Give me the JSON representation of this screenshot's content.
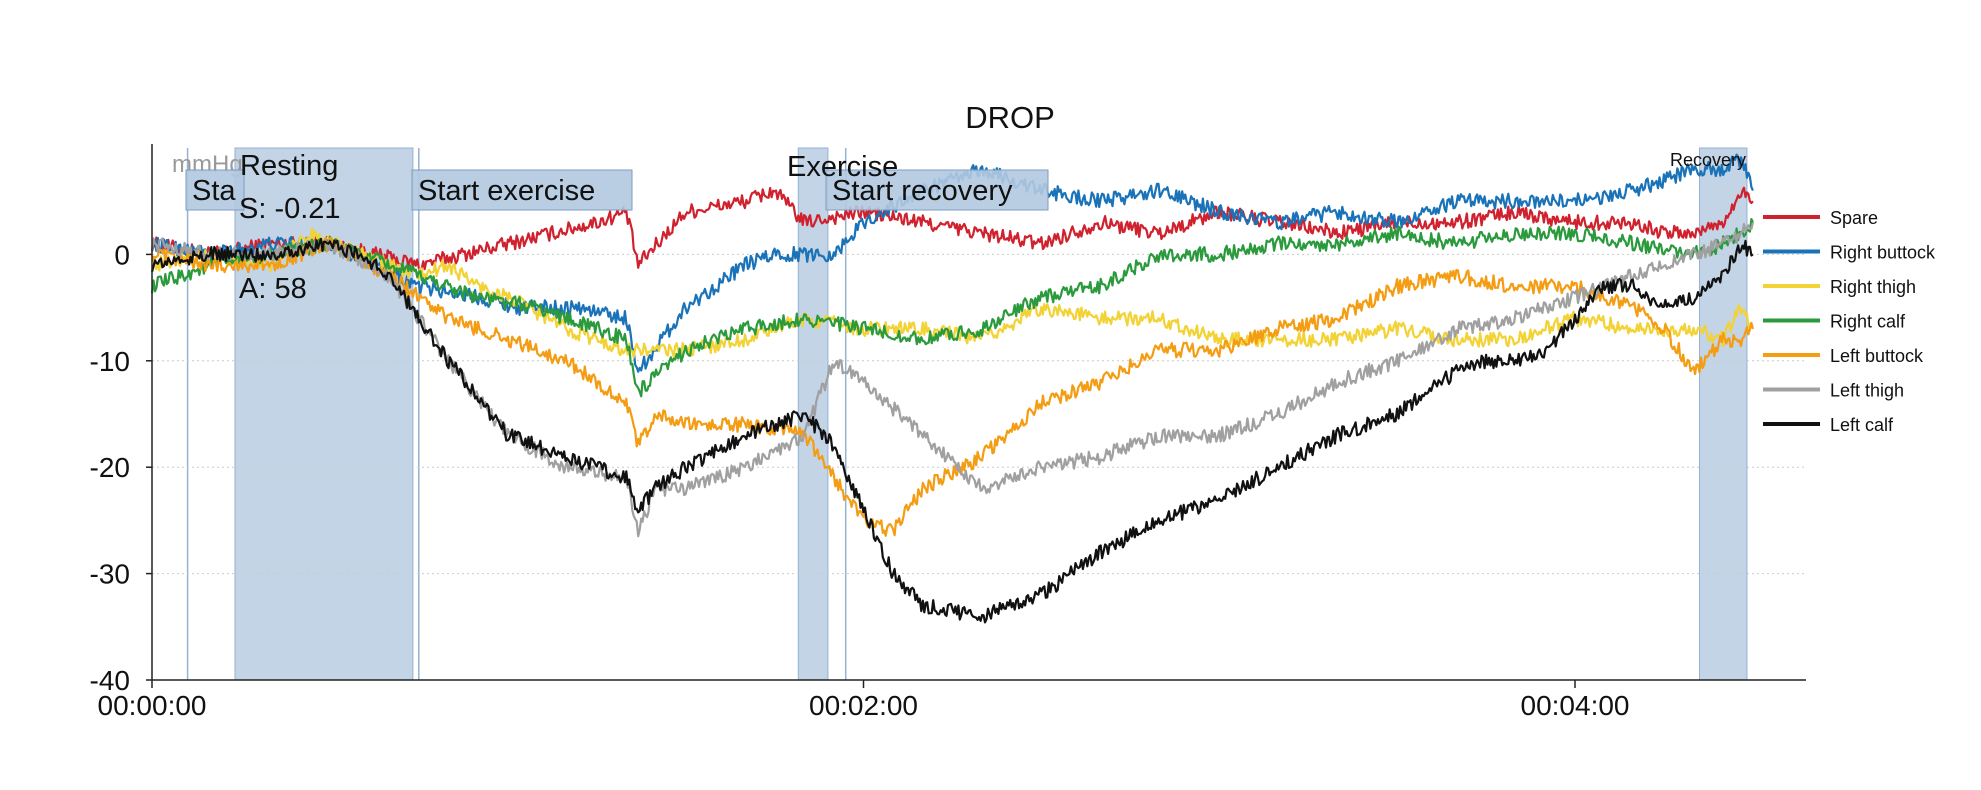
{
  "chart_data": {
    "type": "line",
    "title": "DROP",
    "ylabel": "mmHg",
    "xlabel": "",
    "xlim_seconds": [
      0,
      287
    ],
    "ylim": [
      -40,
      10
    ],
    "y_ticks": [
      0,
      -10,
      -20,
      -30,
      -40
    ],
    "y_tick_labels": [
      "0",
      "-10",
      "-20",
      "-30",
      "-40"
    ],
    "x_ticks_seconds": [
      0,
      120,
      240
    ],
    "x_tick_labels": [
      "00:00:00",
      "00:02:00",
      "00:04:00"
    ],
    "grid": "horizontal dotted",
    "legend_position": "right",
    "phases": [
      {
        "label": "Sta",
        "start": 6,
        "end": 14,
        "shaded": false
      },
      {
        "label": "Resting",
        "start": 14,
        "end": 44,
        "shaded": true
      },
      {
        "label": "Start exercise",
        "start": 45,
        "end": 49,
        "shaded": false
      },
      {
        "label": "Exercise",
        "start": 109,
        "end": 114,
        "shaded": true
      },
      {
        "label": "Start recovery",
        "start": 117,
        "end": 120,
        "shaded": false
      },
      {
        "label": "Recovery",
        "start": 261,
        "end": 269,
        "shaded": true
      }
    ],
    "annotations": [
      "S: -0.21",
      "A: 58"
    ],
    "series": [
      {
        "name": "Spare",
        "color": "#d0222e",
        "x": [
          0,
          10,
          20,
          30,
          45,
          60,
          75,
          80,
          82,
          90,
          100,
          105,
          110,
          120,
          130,
          140,
          150,
          160,
          170,
          180,
          190,
          200,
          210,
          220,
          230,
          240,
          250,
          255,
          260,
          265,
          268,
          270
        ],
        "y": [
          1,
          0,
          1,
          1,
          -1,
          1,
          3,
          4,
          -1,
          4,
          5,
          6,
          3,
          4,
          3,
          2,
          1,
          3,
          2,
          4,
          3,
          2,
          3,
          3,
          4,
          3,
          3,
          2,
          2,
          3,
          6,
          5
        ]
      },
      {
        "name": "Right buttock",
        "color": "#1a73b8",
        "x": [
          0,
          10,
          20,
          30,
          45,
          55,
          62,
          72,
          80,
          82,
          90,
          100,
          105,
          110,
          115,
          120,
          130,
          140,
          150,
          160,
          170,
          180,
          190,
          200,
          210,
          220,
          230,
          240,
          250,
          260,
          265,
          268,
          270
        ],
        "y": [
          1,
          0,
          1,
          1,
          -3,
          -4,
          -5,
          -5,
          -6,
          -11,
          -5,
          -1,
          0,
          0,
          0,
          3,
          6,
          8,
          6,
          5,
          6,
          4,
          3,
          4,
          3,
          5,
          5,
          5,
          6,
          8,
          8,
          9,
          6
        ]
      },
      {
        "name": "Right thigh",
        "color": "#f2d234",
        "x": [
          0,
          10,
          20,
          27,
          35,
          45,
          50,
          55,
          60,
          70,
          80,
          90,
          100,
          110,
          120,
          130,
          140,
          150,
          160,
          170,
          180,
          190,
          200,
          210,
          220,
          230,
          240,
          250,
          260,
          265,
          268,
          270
        ],
        "y": [
          -1,
          0,
          -1,
          2,
          0,
          -2,
          -1,
          -3,
          -4,
          -7,
          -9,
          -9,
          -8,
          -6,
          -7,
          -7,
          -8,
          -5,
          -6,
          -6,
          -8,
          -8,
          -8,
          -7,
          -8,
          -8,
          -6,
          -7,
          -7,
          -8,
          -5,
          -7
        ]
      },
      {
        "name": "Right calf",
        "color": "#2a9a3c",
        "x": [
          0,
          10,
          20,
          30,
          45,
          55,
          65,
          75,
          80,
          82,
          90,
          100,
          110,
          120,
          130,
          140,
          150,
          160,
          170,
          180,
          190,
          200,
          210,
          220,
          230,
          240,
          250,
          260,
          265,
          268,
          270
        ],
        "y": [
          -3,
          -1,
          0,
          1,
          -2,
          -4,
          -5,
          -7,
          -8,
          -13,
          -9,
          -7,
          -6,
          -7,
          -8,
          -7,
          -4,
          -3,
          0,
          0,
          1,
          1,
          2,
          1,
          2,
          2,
          1,
          0,
          1,
          2,
          3
        ]
      },
      {
        "name": "Left buttock",
        "color": "#f49c12",
        "x": [
          0,
          10,
          20,
          30,
          40,
          50,
          60,
          70,
          80,
          82,
          85,
          90,
          100,
          110,
          115,
          120,
          125,
          130,
          140,
          150,
          160,
          170,
          180,
          190,
          200,
          210,
          220,
          230,
          240,
          250,
          255,
          260,
          265,
          268,
          270
        ],
        "y": [
          0,
          -1,
          -1,
          1,
          -2,
          -6,
          -8,
          -10,
          -14,
          -18,
          -15,
          -16,
          -16,
          -17,
          -21,
          -25,
          -26,
          -22,
          -19,
          -14,
          -12,
          -9,
          -9,
          -7,
          -6,
          -3,
          -2,
          -3,
          -3,
          -5,
          -7,
          -11,
          -8,
          -8,
          -7
        ]
      },
      {
        "name": "Left thigh",
        "color": "#a0a0a0",
        "x": [
          0,
          10,
          20,
          30,
          40,
          50,
          60,
          70,
          80,
          82,
          85,
          90,
          100,
          110,
          115,
          120,
          130,
          140,
          150,
          160,
          170,
          180,
          190,
          200,
          210,
          220,
          230,
          240,
          245,
          250,
          255,
          260,
          265,
          268,
          270
        ],
        "y": [
          1,
          0,
          0,
          1,
          -2,
          -10,
          -17,
          -20,
          -21,
          -26,
          -22,
          -22,
          -20,
          -17,
          -10,
          -12,
          -17,
          -22,
          -20,
          -19,
          -17,
          -17,
          -15,
          -12,
          -10,
          -7,
          -6,
          -4,
          -3,
          -2,
          -1,
          0,
          1,
          2,
          3
        ]
      },
      {
        "name": "Left calf",
        "color": "#111111",
        "x": [
          0,
          10,
          20,
          30,
          35,
          40,
          50,
          60,
          70,
          80,
          82,
          85,
          90,
          100,
          105,
          110,
          115,
          120,
          125,
          130,
          140,
          150,
          160,
          170,
          180,
          190,
          200,
          210,
          220,
          225,
          230,
          235,
          240,
          245,
          250,
          255,
          260,
          265,
          268,
          270
        ],
        "y": [
          -1,
          0,
          0,
          1,
          0,
          -2,
          -10,
          -17,
          -19,
          -21,
          -24,
          -22,
          -20,
          -17,
          -16,
          -15,
          -18,
          -24,
          -30,
          -33,
          -34,
          -32,
          -28,
          -25,
          -23,
          -20,
          -17,
          -15,
          -11,
          -10,
          -10,
          -9,
          -6,
          -3,
          -3,
          -5,
          -4,
          -2,
          1,
          0
        ]
      }
    ]
  }
}
